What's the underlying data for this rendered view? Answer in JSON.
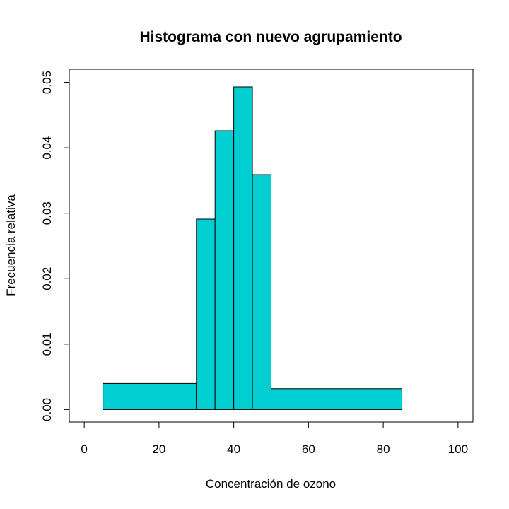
{
  "chart_data": {
    "type": "bar",
    "title": "Histograma con nuevo agrupamiento",
    "xlabel": "Concentración de ozono",
    "ylabel": "Frecuencia relativa",
    "xlim": [
      -4,
      104
    ],
    "ylim": [
      -0.0019,
      0.052
    ],
    "x_ticks": [
      0,
      20,
      40,
      60,
      80,
      100
    ],
    "x_tick_labels": [
      "0",
      "20",
      "40",
      "60",
      "80",
      "100"
    ],
    "y_ticks": [
      0,
      0.01,
      0.02,
      0.03,
      0.04,
      0.05
    ],
    "y_tick_labels": [
      "0.00",
      "0.01",
      "0.02",
      "0.03",
      "0.04",
      "0.05"
    ],
    "bins": [
      {
        "start": 5,
        "end": 30,
        "value": 0.004
      },
      {
        "start": 30,
        "end": 35,
        "value": 0.0291
      },
      {
        "start": 35,
        "end": 40,
        "value": 0.0426
      },
      {
        "start": 40,
        "end": 45,
        "value": 0.0493
      },
      {
        "start": 45,
        "end": 50,
        "value": 0.0359
      },
      {
        "start": 50,
        "end": 85,
        "value": 0.0032
      }
    ],
    "bar_color": "#00CED1",
    "border_color": "#000000",
    "grid": false,
    "legend": "none"
  }
}
